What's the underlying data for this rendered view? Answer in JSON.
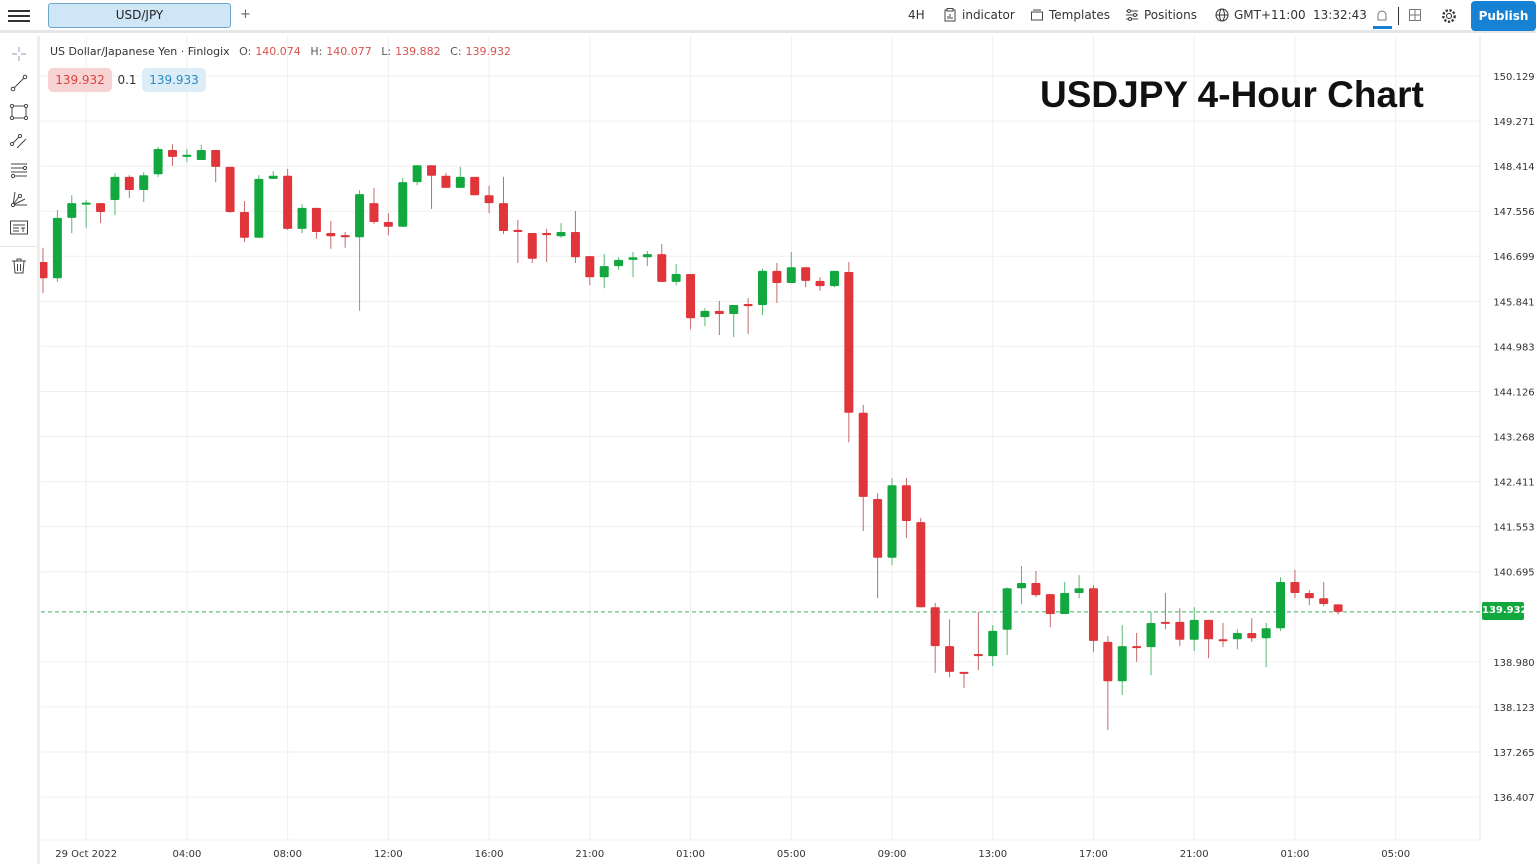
{
  "topbar": {
    "tab_label": "USD/JPY",
    "add_tab": "+",
    "timeframe": "4H",
    "indicator": "indicator",
    "templates": "Templates",
    "positions": "Positions",
    "timezone": "GMT+11:00",
    "clock": "13:32:43",
    "publish": "Publish"
  },
  "legend": {
    "symbol": "US Dollar/Japanese Yen · Finlogix",
    "o_label": "O:",
    "o": "140.074",
    "h_label": "H:",
    "h": "140.077",
    "l_label": "L:",
    "l": "139.882",
    "c_label": "C:",
    "c": "139.932",
    "sell": "139.932",
    "spread": "0.1",
    "buy": "139.933"
  },
  "left_toolbar": [
    "crosshair-icon",
    "trend-line-icon",
    "rectangle-icon",
    "parallel-channel-icon",
    "fib-retracement-icon",
    "pitchfork-icon",
    "text-note-icon",
    "trash-icon"
  ],
  "colors": {
    "up": "#13a83f",
    "down": "#e0353a",
    "accent": "#1781d3"
  },
  "chart_data": {
    "type": "candlestick",
    "title": "USDJPY 4-Hour Chart",
    "ylim": [
      135.59,
      150.89
    ],
    "grid": true,
    "last_price": "139.932",
    "y_ticks": [
      "150.129",
      "149.271",
      "148.414",
      "147.556",
      "146.699",
      "145.841",
      "144.983",
      "144.126",
      "143.268",
      "142.411",
      "141.553",
      "140.695",
      "138.980",
      "138.123",
      "137.265",
      "136.407"
    ],
    "x_ticks": [
      "29 Oct 2022",
      "04:00",
      "08:00",
      "12:00",
      "16:00",
      "21:00",
      "01:00",
      "05:00",
      "09:00",
      "13:00",
      "17:00",
      "21:00",
      "01:00",
      "05:00"
    ],
    "ohlc": [
      [
        146.59,
        146.86,
        146.0,
        146.28
      ],
      [
        146.28,
        147.58,
        146.21,
        147.43
      ],
      [
        147.43,
        147.86,
        147.14,
        147.71
      ],
      [
        147.7,
        147.77,
        147.24,
        147.72
      ],
      [
        147.71,
        147.71,
        147.33,
        147.54
      ],
      [
        147.77,
        148.28,
        147.48,
        148.21
      ],
      [
        148.21,
        148.24,
        147.81,
        147.96
      ],
      [
        147.96,
        148.3,
        147.73,
        148.24
      ],
      [
        148.26,
        148.78,
        148.21,
        148.74
      ],
      [
        148.72,
        148.83,
        148.42,
        148.59
      ],
      [
        148.59,
        148.74,
        148.49,
        148.63
      ],
      [
        148.53,
        148.82,
        148.53,
        148.72
      ],
      [
        148.72,
        148.72,
        148.11,
        148.4
      ],
      [
        148.4,
        148.4,
        147.52,
        147.54
      ],
      [
        147.54,
        147.75,
        146.97,
        147.05
      ],
      [
        147.05,
        148.24,
        147.05,
        148.17
      ],
      [
        148.17,
        148.32,
        148.17,
        148.23
      ],
      [
        148.23,
        148.36,
        147.2,
        147.22
      ],
      [
        147.22,
        147.69,
        147.14,
        147.62
      ],
      [
        147.62,
        147.62,
        147.03,
        147.16
      ],
      [
        147.14,
        147.37,
        146.84,
        147.08
      ],
      [
        147.1,
        147.16,
        146.86,
        147.06
      ],
      [
        147.06,
        147.96,
        145.66,
        147.88
      ],
      [
        147.71,
        148.0,
        147.31,
        147.35
      ],
      [
        147.35,
        147.52,
        147.1,
        147.26
      ],
      [
        147.26,
        148.19,
        147.26,
        148.11
      ],
      [
        148.11,
        148.43,
        148.05,
        148.43
      ],
      [
        148.43,
        148.43,
        147.6,
        148.23
      ],
      [
        148.23,
        148.28,
        148.0,
        148.0
      ],
      [
        148.0,
        148.4,
        148.0,
        148.21
      ],
      [
        148.21,
        148.21,
        147.86,
        147.86
      ],
      [
        147.86,
        148.04,
        147.52,
        147.71
      ],
      [
        147.71,
        148.21,
        147.12,
        147.18
      ],
      [
        147.2,
        147.39,
        146.57,
        147.16
      ],
      [
        147.14,
        147.14,
        146.57,
        146.65
      ],
      [
        147.14,
        147.22,
        146.59,
        147.1
      ],
      [
        147.08,
        147.33,
        147.05,
        147.16
      ],
      [
        147.16,
        147.56,
        146.57,
        146.68
      ],
      [
        146.7,
        146.7,
        146.15,
        146.3
      ],
      [
        146.3,
        146.74,
        146.09,
        146.51
      ],
      [
        146.51,
        146.68,
        146.44,
        146.63
      ],
      [
        146.63,
        146.78,
        146.3,
        146.68
      ],
      [
        146.68,
        146.8,
        146.51,
        146.74
      ],
      [
        146.74,
        146.93,
        146.21,
        146.21
      ],
      [
        146.21,
        146.55,
        146.15,
        146.36
      ],
      [
        146.36,
        146.36,
        145.31,
        145.52
      ],
      [
        145.54,
        145.71,
        145.37,
        145.66
      ],
      [
        145.66,
        145.85,
        145.2,
        145.6
      ],
      [
        145.6,
        145.77,
        145.16,
        145.77
      ],
      [
        145.79,
        145.9,
        145.22,
        145.75
      ],
      [
        145.77,
        146.46,
        145.58,
        146.42
      ],
      [
        146.42,
        146.57,
        145.81,
        146.19
      ],
      [
        146.19,
        146.78,
        146.19,
        146.49
      ],
      [
        146.49,
        146.49,
        146.11,
        146.23
      ],
      [
        146.23,
        146.3,
        146.04,
        146.13
      ],
      [
        146.13,
        146.42,
        146.11,
        146.42
      ],
      [
        146.4,
        146.59,
        143.16,
        143.72
      ],
      [
        143.72,
        143.87,
        141.47,
        142.12
      ],
      [
        142.08,
        142.19,
        140.19,
        140.96
      ],
      [
        140.96,
        142.48,
        140.82,
        142.34
      ],
      [
        142.34,
        142.48,
        141.34,
        141.66
      ],
      [
        141.64,
        141.72,
        140.02,
        140.02
      ],
      [
        140.02,
        140.1,
        138.77,
        139.28
      ],
      [
        139.28,
        139.79,
        138.69,
        138.79
      ],
      [
        138.79,
        138.79,
        138.48,
        138.77
      ],
      [
        139.13,
        139.93,
        138.82,
        139.09
      ],
      [
        139.09,
        139.68,
        138.9,
        139.57
      ],
      [
        139.59,
        140.4,
        139.11,
        140.38
      ],
      [
        140.38,
        140.8,
        140.08,
        140.48
      ],
      [
        140.48,
        140.71,
        140.21,
        140.25
      ],
      [
        140.27,
        140.27,
        139.64,
        139.89
      ],
      [
        139.89,
        140.5,
        139.89,
        140.29
      ],
      [
        140.29,
        140.63,
        140.19,
        140.38
      ],
      [
        140.38,
        140.44,
        139.17,
        139.38
      ],
      [
        139.36,
        139.47,
        137.68,
        138.61
      ],
      [
        138.61,
        139.68,
        138.35,
        139.28
      ],
      [
        139.28,
        139.53,
        138.98,
        139.26
      ],
      [
        139.26,
        139.93,
        138.73,
        139.72
      ],
      [
        139.74,
        140.29,
        139.6,
        139.72
      ],
      [
        139.74,
        140.0,
        139.28,
        139.4
      ],
      [
        139.4,
        140.02,
        139.19,
        139.78
      ],
      [
        139.78,
        139.78,
        139.05,
        139.41
      ],
      [
        139.41,
        139.72,
        139.26,
        139.4
      ],
      [
        139.41,
        139.6,
        139.22,
        139.53
      ],
      [
        139.53,
        139.81,
        139.36,
        139.43
      ],
      [
        139.43,
        139.72,
        138.88,
        139.62
      ],
      [
        139.62,
        140.59,
        139.57,
        140.5
      ],
      [
        140.5,
        140.73,
        140.19,
        140.29
      ],
      [
        140.29,
        140.35,
        140.06,
        140.19
      ],
      [
        140.19,
        140.5,
        140.04,
        140.08
      ],
      [
        140.074,
        140.077,
        139.882,
        139.932
      ]
    ]
  }
}
